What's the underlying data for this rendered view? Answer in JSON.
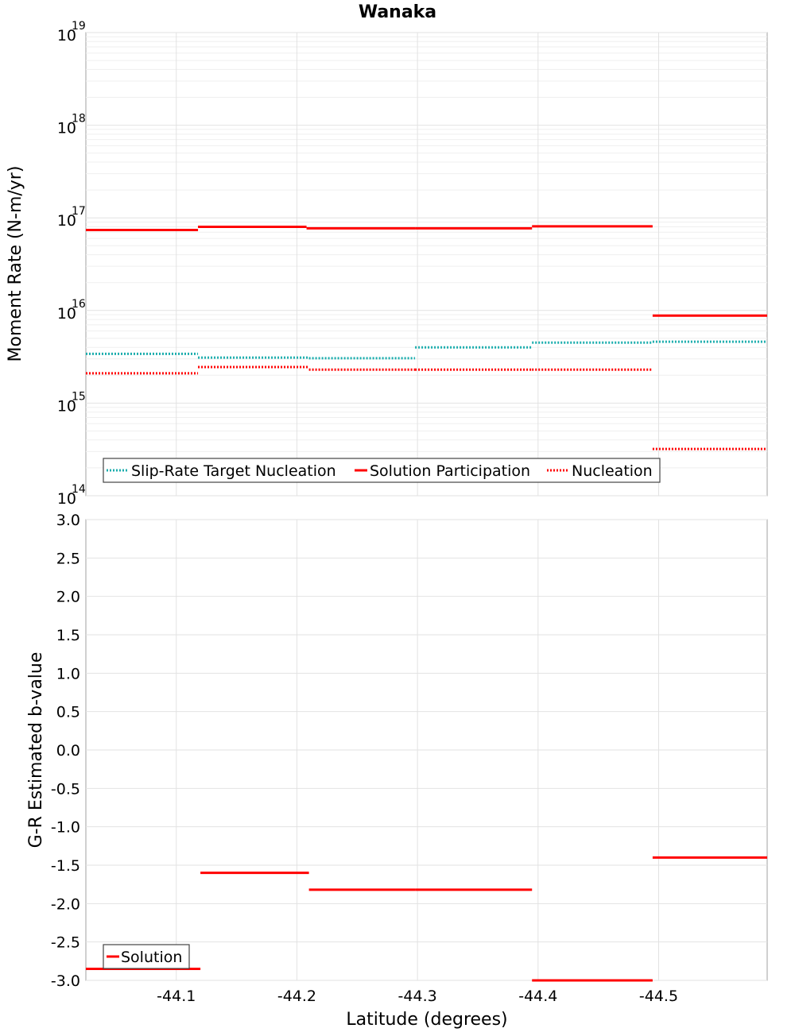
{
  "chart_data": [
    {
      "type": "line",
      "title": "Wanaka",
      "xlabel": "",
      "ylabel": "Moment Rate (N-m/yr)",
      "yscale": "log",
      "ylim_exponents": [
        14,
        19
      ],
      "y_tick_labels": [
        {
          "base": "10",
          "exp": "14"
        },
        {
          "base": "10",
          "exp": "15"
        },
        {
          "base": "10",
          "exp": "16"
        },
        {
          "base": "10",
          "exp": "17"
        },
        {
          "base": "10",
          "exp": "18"
        },
        {
          "base": "10",
          "exp": "19"
        }
      ],
      "legend_position": "bottom-left",
      "series": [
        {
          "name": "Slip-Rate Target Nucleation",
          "color": "#1aadad",
          "style": "dotted",
          "segments": [
            {
              "x0": -44.025,
              "x1": -44.118,
              "y": 3400000000000000.0
            },
            {
              "x0": -44.118,
              "x1": -44.21,
              "y": 3100000000000000.0
            },
            {
              "x0": -44.21,
              "x1": -44.298,
              "y": 3050000000000000.0
            },
            {
              "x0": -44.298,
              "x1": -44.395,
              "y": 4000000000000000.0
            },
            {
              "x0": -44.395,
              "x1": -44.495,
              "y": 4500000000000000.0
            },
            {
              "x0": -44.495,
              "x1": -44.59,
              "y": 4600000000000000.0
            }
          ]
        },
        {
          "name": "Solution Participation",
          "color": "#ff0000",
          "style": "solid",
          "segments": [
            {
              "x0": -44.025,
              "x1": -44.118,
              "y": 7.4e+16
            },
            {
              "x0": -44.118,
              "x1": -44.208,
              "y": 8e+16
            },
            {
              "x0": -44.208,
              "x1": -44.298,
              "y": 7.7e+16
            },
            {
              "x0": -44.298,
              "x1": -44.395,
              "y": 7.7e+16
            },
            {
              "x0": -44.395,
              "x1": -44.495,
              "y": 8.1e+16
            },
            {
              "x0": -44.495,
              "x1": -44.59,
              "y": 8800000000000000.0
            }
          ]
        },
        {
          "name": "Nucleation",
          "color": "#ff0000",
          "style": "dotted",
          "segments": [
            {
              "x0": -44.025,
              "x1": -44.118,
              "y": 2100000000000000.0
            },
            {
              "x0": -44.118,
              "x1": -44.21,
              "y": 2450000000000000.0
            },
            {
              "x0": -44.21,
              "x1": -44.298,
              "y": 2300000000000000.0
            },
            {
              "x0": -44.298,
              "x1": -44.395,
              "y": 2300000000000000.0
            },
            {
              "x0": -44.395,
              "x1": -44.495,
              "y": 2300000000000000.0
            },
            {
              "x0": -44.495,
              "x1": -44.59,
              "y": 320000000000000.0
            }
          ]
        }
      ]
    },
    {
      "type": "line",
      "title": "",
      "xlabel": "Latitude (degrees)",
      "ylabel": "G-R Estimated b-value",
      "xlim": [
        -44.025,
        -44.59
      ],
      "ylim": [
        -3.0,
        3.0
      ],
      "x_ticks": [
        "-44.1",
        "-44.2",
        "-44.3",
        "-44.4",
        "-44.5"
      ],
      "y_ticks": [
        "3.0",
        "2.5",
        "2.0",
        "1.5",
        "1.0",
        "0.5",
        "0.0",
        "-0.5",
        "-1.0",
        "-1.5",
        "-2.0",
        "-2.5",
        "-3.0"
      ],
      "legend_position": "bottom-left",
      "series": [
        {
          "name": "Solution",
          "color": "#ff0000",
          "style": "solid",
          "segments": [
            {
              "x0": -44.025,
              "x1": -44.12,
              "y": -2.85
            },
            {
              "x0": -44.12,
              "x1": -44.21,
              "y": -1.6
            },
            {
              "x0": -44.21,
              "x1": -44.298,
              "y": -1.82
            },
            {
              "x0": -44.298,
              "x1": -44.395,
              "y": -1.82
            },
            {
              "x0": -44.395,
              "x1": -44.495,
              "y": -3.0
            },
            {
              "x0": -44.495,
              "x1": -44.59,
              "y": -1.4
            }
          ]
        }
      ]
    }
  ]
}
